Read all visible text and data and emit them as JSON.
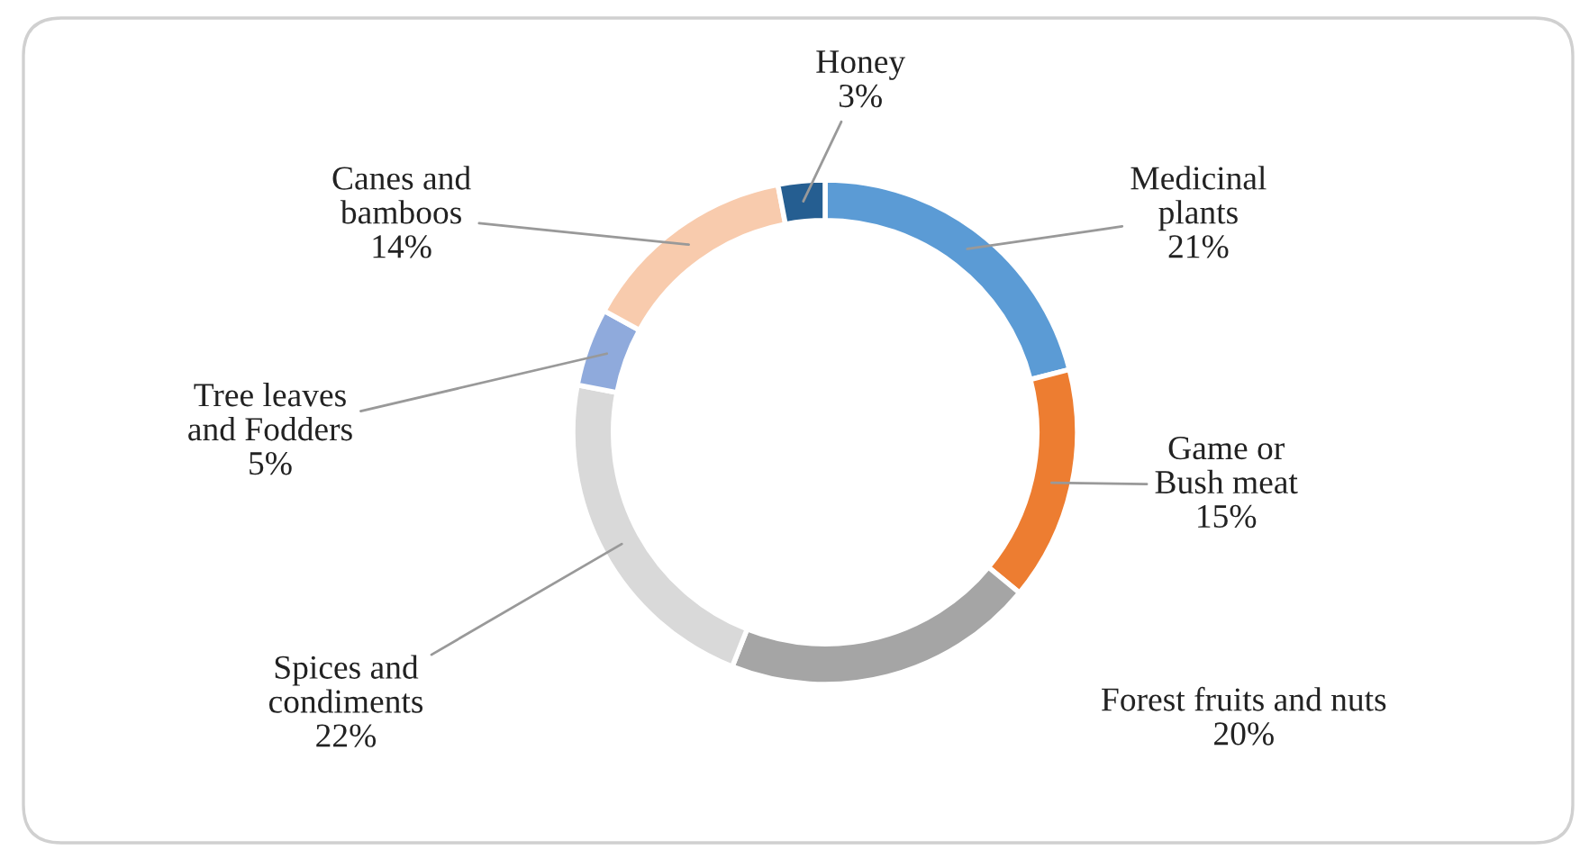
{
  "chart_data": {
    "type": "donut",
    "categories": [
      "Medicinal\nplants",
      "Game or\nBush meat",
      "Forest fruits and nuts",
      "Spices and\ncondiments",
      "Tree leaves\nand Fodders",
      "Canes and\nbamboos",
      "Honey"
    ],
    "values": [
      21,
      15,
      20,
      22,
      5,
      14,
      3
    ],
    "value_labels": [
      "21%",
      "15%",
      "20%",
      "22%",
      "5%",
      "14%",
      "3%"
    ],
    "colors": [
      "#5b9bd5",
      "#ed7d31",
      "#a5a5a5",
      "#d9d9d9",
      "#8faadc",
      "#f8cbad",
      "#255e91"
    ],
    "legend": false
  }
}
